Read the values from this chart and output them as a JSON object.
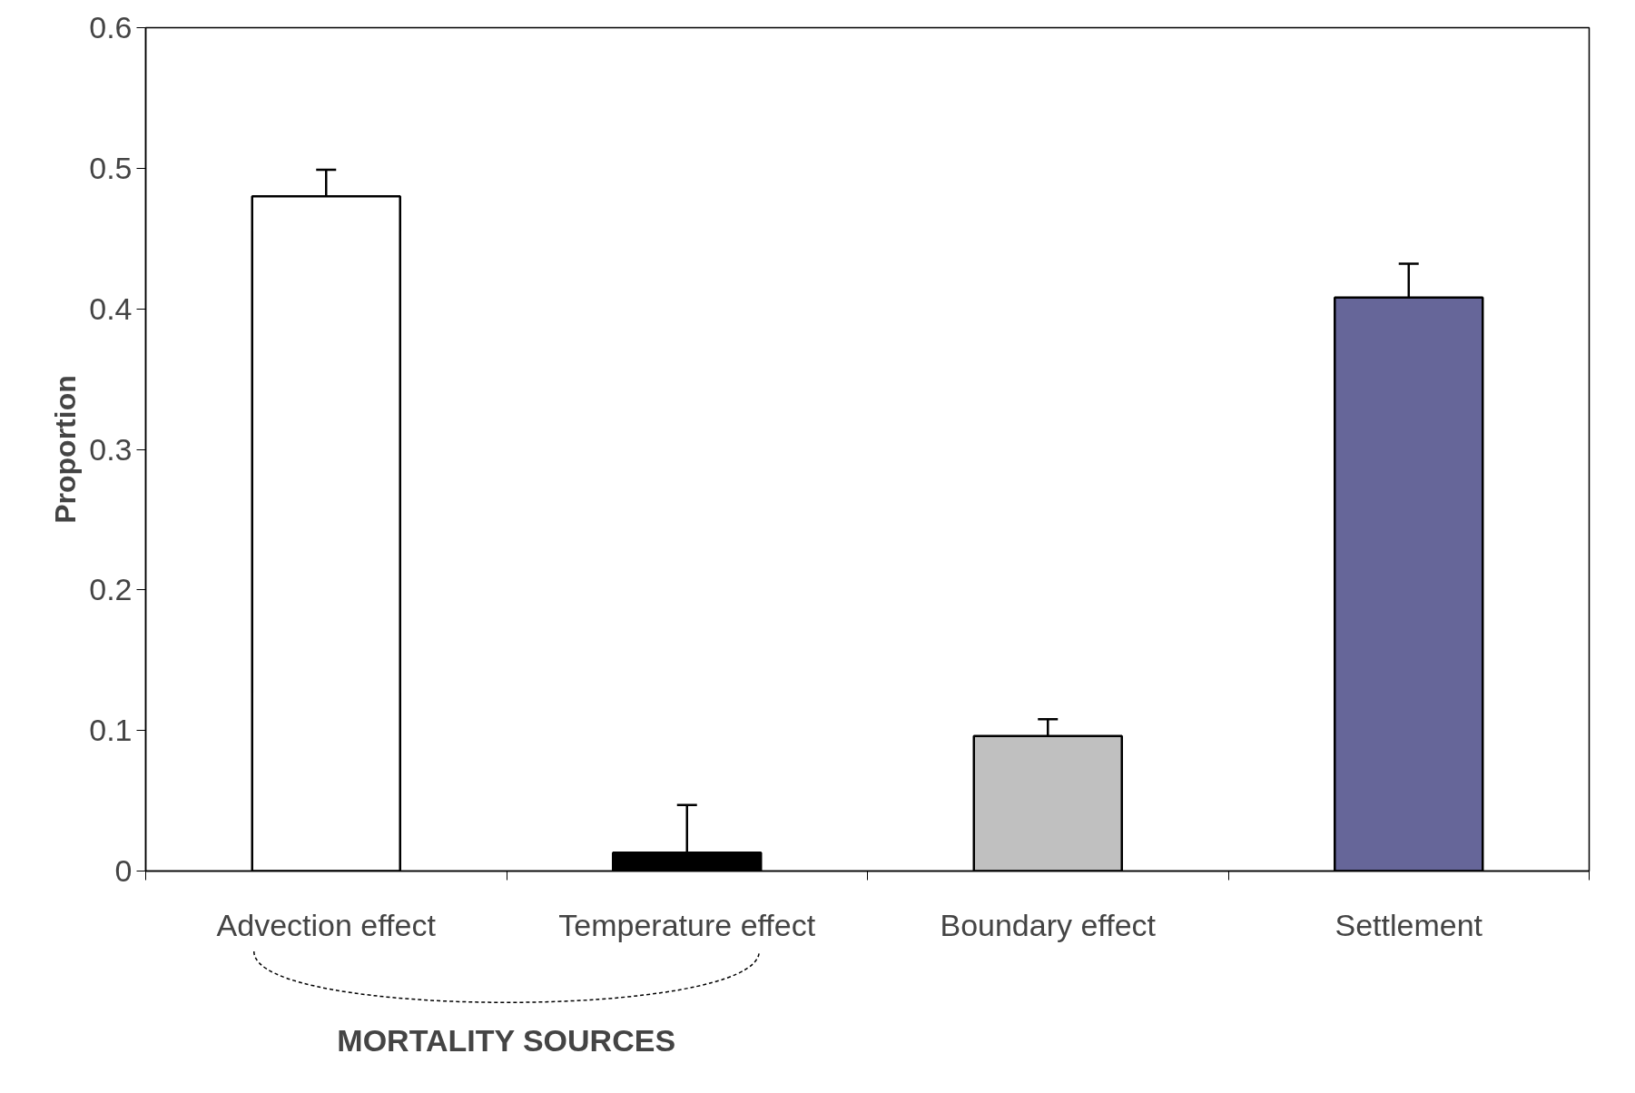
{
  "chart_data": {
    "type": "bar",
    "ylabel": "Proportion",
    "categories": [
      "Advection effect",
      "Temperature effect",
      "Boundary effect",
      "Settlement"
    ],
    "values": [
      0.48,
      0.013,
      0.096,
      0.408
    ],
    "colors": [
      "#ffffff",
      "#000000",
      "#c0c0c0",
      "#666699"
    ],
    "errors": [
      [
        0.48,
        0.499
      ],
      [
        0.013,
        0.047
      ],
      [
        0.096,
        0.108
      ],
      [
        0.408,
        0.432
      ]
    ],
    "ylim": [
      0,
      0.6
    ],
    "yticks": [
      0,
      0.1,
      0.2,
      0.3,
      0.4,
      0.5,
      0.6
    ],
    "grid": false,
    "annotations": [
      "MORTALITY SOURCES"
    ]
  }
}
